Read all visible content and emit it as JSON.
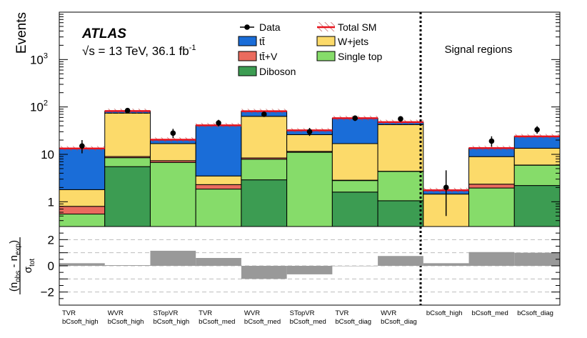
{
  "chart_data": {
    "type": "stacked-bar-log",
    "title": "ATLAS",
    "energy": "√s = 13 TeV, 36.1 fb",
    "lumi_exp": "-1",
    "ylabel": "Events",
    "ylim": [
      0.3,
      10000
    ],
    "yticks": [
      {
        "v": 1,
        "label": "1"
      },
      {
        "v": 10,
        "label": "10"
      },
      {
        "v": 100,
        "label": "10",
        "sup": "2"
      },
      {
        "v": 1000,
        "label": "10",
        "sup": "3"
      }
    ],
    "signal_label": "Signal regions",
    "categories": [
      {
        "l1": "TVR",
        "l2": "bCsoft_high"
      },
      {
        "l1": "WVR",
        "l2": "bCsoft_high"
      },
      {
        "l1": "STopVR",
        "l2": "bCsoft_high"
      },
      {
        "l1": "TVR",
        "l2": "bCsoft_med"
      },
      {
        "l1": "WVR",
        "l2": "bCsoft_med"
      },
      {
        "l1": "STopVR",
        "l2": "bCsoft_med"
      },
      {
        "l1": "TVR",
        "l2": "bCsoft_diag"
      },
      {
        "l1": "WVR",
        "l2": "bCsoft_diag"
      },
      {
        "l1": "",
        "l2": "bCsoft_high"
      },
      {
        "l1": "",
        "l2": "bCsoft_med"
      },
      {
        "l1": "",
        "l2": "bCsoft_diag"
      }
    ],
    "series": [
      {
        "key": "diboson",
        "name": "Diboson",
        "color": "#3c9c52",
        "values": [
          0.05,
          5.5,
          0.05,
          0.05,
          2.9,
          0.05,
          1.6,
          1.05,
          0.05,
          0.05,
          2.2
        ]
      },
      {
        "key": "singletop",
        "name": "Single top",
        "color": "#86dc6a",
        "values": [
          0.5,
          3.0,
          6.7,
          1.8,
          5.0,
          11.0,
          1.2,
          3.3,
          0.05,
          1.9,
          3.7
        ]
      },
      {
        "key": "ttv",
        "name": "tt̄+V",
        "color": "#ea6b5e",
        "values": [
          0.25,
          0.5,
          0.6,
          0.45,
          0.5,
          0.5,
          0.05,
          0.05,
          0.05,
          0.4,
          0.05
        ]
      },
      {
        "key": "wjets",
        "name": "W+jets",
        "color": "#fcda6a",
        "values": [
          1.0,
          65,
          9.5,
          1.2,
          55,
          14.5,
          14,
          38,
          1.3,
          6.6,
          7.5
        ]
      },
      {
        "key": "ttbar",
        "name": "tt̄",
        "color": "#1a6dd8",
        "values": [
          11.5,
          8,
          3.5,
          37.5,
          18,
          6,
          41,
          5.5,
          0.3,
          4.6,
          10.5
        ]
      }
    ],
    "total_sm": [
      13.3,
      82,
      20.35,
      40.99,
      81.4,
      32.05,
      57.85,
      47.9,
      1.75,
      13.55,
      23.95
    ],
    "data": [
      15,
      84,
      28,
      46,
      70,
      30,
      58,
      56,
      2.0,
      19,
      33
    ],
    "data_err_lo": [
      4.5,
      9,
      6,
      7,
      8,
      5.5,
      7.5,
      7.5,
      1.5,
      4.5,
      5.8
    ],
    "data_err_hi": [
      5,
      10,
      6.5,
      7.5,
      9,
      6,
      8,
      8,
      2.6,
      5,
      6.4
    ],
    "legend": [
      {
        "label": "Data",
        "type": "data"
      },
      {
        "label": "Total SM",
        "type": "total"
      },
      {
        "label": "tt̄",
        "type": "fill",
        "key": "ttbar"
      },
      {
        "label": "W+jets",
        "type": "fill",
        "key": "wjets"
      },
      {
        "label": "tt̄+V",
        "type": "fill",
        "key": "ttv"
      },
      {
        "label": "Single top",
        "type": "fill",
        "key": "singletop"
      },
      {
        "label": "Diboson",
        "type": "fill",
        "key": "diboson"
      }
    ],
    "ratio": {
      "ylabel_num": "n",
      "ylabel_num_sub1": "obs",
      "ylabel_num_mid": " - n",
      "ylabel_num_sub2": "exp",
      "ylabel_den": "σ",
      "ylabel_den_sub": "tot",
      "ylim": [
        -3,
        3
      ],
      "yticks": [
        {
          "v": -2,
          "label": "−2"
        },
        {
          "v": 0,
          "label": "0"
        },
        {
          "v": 2,
          "label": "2"
        }
      ],
      "values": [
        0.2,
        0.05,
        1.15,
        0.6,
        -1.0,
        -0.65,
        0.0,
        0.75,
        0.2,
        1.05,
        1.0
      ]
    },
    "colors": {
      "total_line": "#e8141e",
      "hatch": "#b84040",
      "ratio_bar": "#999999",
      "grid": "#bdbdbd"
    }
  }
}
